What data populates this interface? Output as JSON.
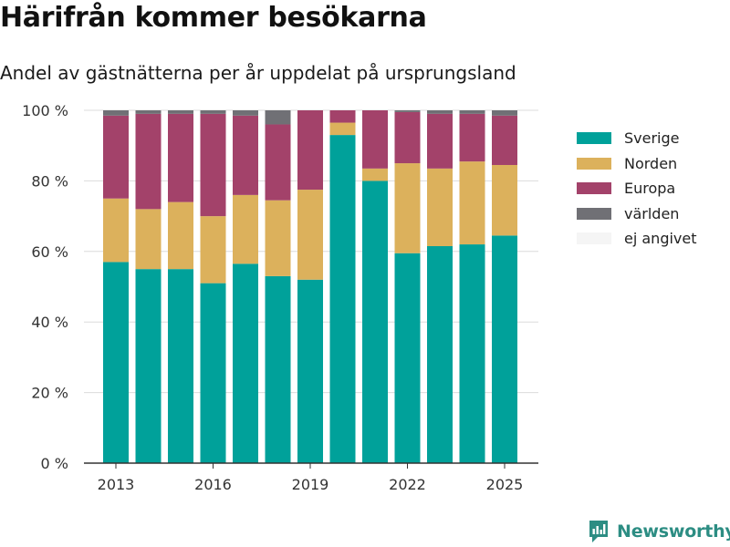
{
  "header": {
    "title": "Härifrån kommer besökarna",
    "subtitle": "Andel av gästnätterna per år uppdelat på ursprungsland"
  },
  "brand": {
    "name": "Newsworthy",
    "icon": "newsworthy-logo-icon"
  },
  "chart_data": {
    "type": "bar",
    "stacked": true,
    "title": "Härifrån kommer besökarna",
    "subtitle": "Andel av gästnätterna per år uppdelat på ursprungsland",
    "xlabel": "",
    "ylabel": "",
    "categories": [
      2013,
      2014,
      2015,
      2016,
      2017,
      2018,
      2019,
      2020,
      2021,
      2022,
      2023,
      2024,
      2025
    ],
    "x_ticks": [
      2013,
      2016,
      2019,
      2022,
      2025
    ],
    "y_ticks": [
      0,
      20,
      40,
      60,
      80,
      100
    ],
    "y_tick_suffix": " %",
    "ylim": [
      0,
      100
    ],
    "grid": true,
    "legend_position": "right",
    "series": [
      {
        "name": "Sverige",
        "color": "#00a19a",
        "values": [
          57,
          55,
          55,
          51,
          56.5,
          53,
          52,
          93,
          80,
          59.5,
          61.5,
          62,
          64.5
        ]
      },
      {
        "name": "Norden",
        "color": "#dcb15c",
        "values": [
          18,
          17,
          19,
          19,
          19.5,
          21.5,
          25.5,
          3.5,
          3.5,
          25.5,
          22,
          23.5,
          20
        ]
      },
      {
        "name": "Europa",
        "color": "#a3426a",
        "values": [
          23.5,
          27,
          25,
          29,
          22.5,
          21.5,
          22.5,
          3.5,
          16.5,
          14.5,
          15.5,
          13.5,
          14
        ]
      },
      {
        "name": "världen",
        "color": "#707075",
        "values": [
          1.5,
          1,
          1,
          1,
          1.5,
          4,
          0,
          0,
          0,
          0.5,
          1,
          1,
          1.5
        ]
      },
      {
        "name": "ej angivet",
        "color": "#f5f5f5",
        "values": [
          0,
          0,
          0,
          0,
          0,
          0,
          0,
          0,
          0,
          0,
          0,
          0,
          0
        ]
      }
    ]
  }
}
